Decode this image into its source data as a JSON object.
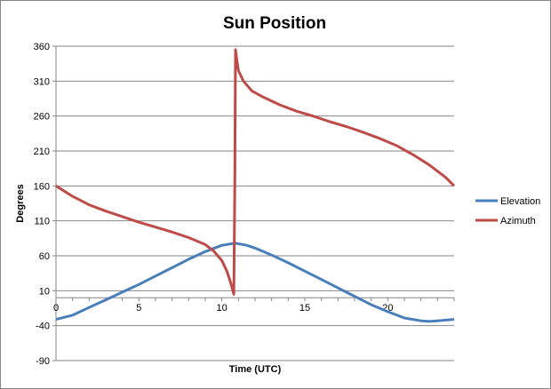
{
  "chart_data": {
    "type": "line",
    "title": "Sun Position",
    "xlabel": "Time (UTC)",
    "ylabel": "Degrees",
    "xlim": [
      0,
      24
    ],
    "ylim": [
      -90,
      360
    ],
    "x_ticks": [
      "0",
      "5",
      "10",
      "15",
      "20"
    ],
    "x_tick_values": [
      0,
      5,
      10,
      15,
      20
    ],
    "y_ticks": [
      "360",
      "310",
      "260",
      "210",
      "160",
      "110",
      "60",
      "10",
      "-40",
      "-90"
    ],
    "y_tick_values": [
      360,
      310,
      260,
      210,
      160,
      110,
      60,
      10,
      -40,
      -90
    ],
    "grid": "horizontal",
    "legend_position": "right",
    "series": [
      {
        "name": "Elevation",
        "color": "#4a7ebb",
        "x": [
          0,
          1,
          2,
          3,
          4,
          5,
          6,
          7,
          8,
          9,
          10,
          10.8,
          11.5,
          12,
          13,
          14,
          15,
          16,
          17,
          18,
          19,
          20,
          21,
          22,
          22.5,
          23,
          24
        ],
        "y": [
          -31,
          -25,
          -14,
          -3,
          8,
          19,
          31,
          43,
          55,
          66,
          75,
          78,
          75,
          71,
          61,
          50,
          38,
          26,
          14,
          2,
          -10,
          -20,
          -29,
          -33,
          -34,
          -33,
          -31
        ]
      },
      {
        "name": "Azimuth",
        "color": "#be4b48",
        "x": [
          0,
          1,
          2,
          3,
          4,
          5,
          6,
          7,
          8,
          9,
          9.5,
          10,
          10.3,
          10.55,
          10.72,
          10.78,
          10.82,
          10.9,
          11,
          11.3,
          11.8,
          12.5,
          13.5,
          14.5,
          15.5,
          16.5,
          17.5,
          18.5,
          19.5,
          20.5,
          21.5,
          22.5,
          23.5,
          24
        ],
        "y": [
          160,
          145,
          133,
          124,
          116,
          108,
          101,
          94,
          86,
          76,
          67,
          53,
          38,
          20,
          5,
          160,
          355,
          340,
          325,
          310,
          296,
          287,
          276,
          267,
          260,
          252,
          245,
          237,
          228,
          218,
          205,
          190,
          172,
          160
        ]
      }
    ]
  }
}
